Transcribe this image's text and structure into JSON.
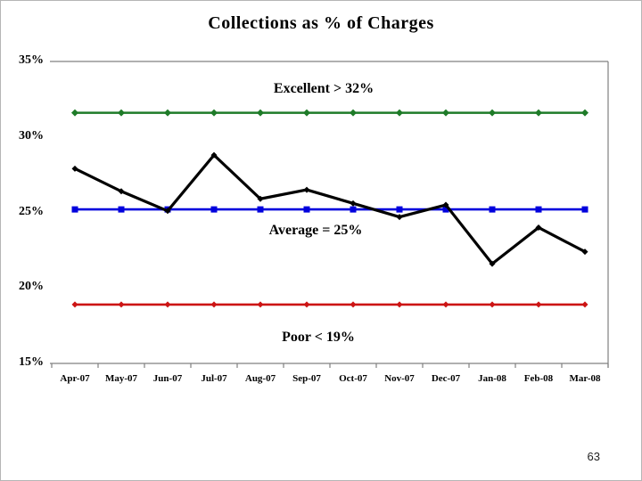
{
  "page": {
    "number": "63"
  },
  "chart_data": {
    "type": "line",
    "title": "Collections as % of Charges",
    "categories": [
      "Apr-07",
      "May-07",
      "Jun-07",
      "Jul-07",
      "Aug-07",
      "Sep-07",
      "Oct-07",
      "Nov-07",
      "Dec-07",
      "Jan-08",
      "Feb-08",
      "Mar-08"
    ],
    "series": [
      {
        "name": "Excellent threshold",
        "color": "#1e7b28",
        "marker": "diamond",
        "values": [
          31.6,
          31.6,
          31.6,
          31.6,
          31.6,
          31.6,
          31.6,
          31.6,
          31.6,
          31.6,
          31.6,
          31.6
        ]
      },
      {
        "name": "Average",
        "color": "#0000dd",
        "marker": "square",
        "values": [
          25.2,
          25.2,
          25.2,
          25.2,
          25.2,
          25.2,
          25.2,
          25.2,
          25.2,
          25.2,
          25.2,
          25.2
        ]
      },
      {
        "name": "Poor threshold",
        "color": "#cc1414",
        "marker": "diamond",
        "values": [
          18.9,
          18.9,
          18.9,
          18.9,
          18.9,
          18.9,
          18.9,
          18.9,
          18.9,
          18.9,
          18.9,
          18.9
        ]
      },
      {
        "name": "Collections as % of Charges",
        "color": "#000000",
        "marker": "diamond",
        "values": [
          27.9,
          26.4,
          25.1,
          28.8,
          25.9,
          26.5,
          25.6,
          24.7,
          25.5,
          21.6,
          24.0,
          22.4
        ]
      }
    ],
    "annotations": [
      {
        "text": "Excellent > 32%"
      },
      {
        "text": "Average = 25%"
      },
      {
        "text": "Poor < 19%"
      }
    ],
    "yticks": [
      {
        "label": "35%",
        "value": 35
      },
      {
        "label": "30%",
        "value": 30
      },
      {
        "label": "25%",
        "value": 25
      },
      {
        "label": "20%",
        "value": 20
      },
      {
        "label": "15%",
        "value": 15
      }
    ],
    "ylim": [
      15,
      35
    ],
    "xlabel": "",
    "ylabel": "",
    "legend": "none",
    "grid": "plot frame top, bottom and right borders only",
    "frame_color": "#808080"
  }
}
